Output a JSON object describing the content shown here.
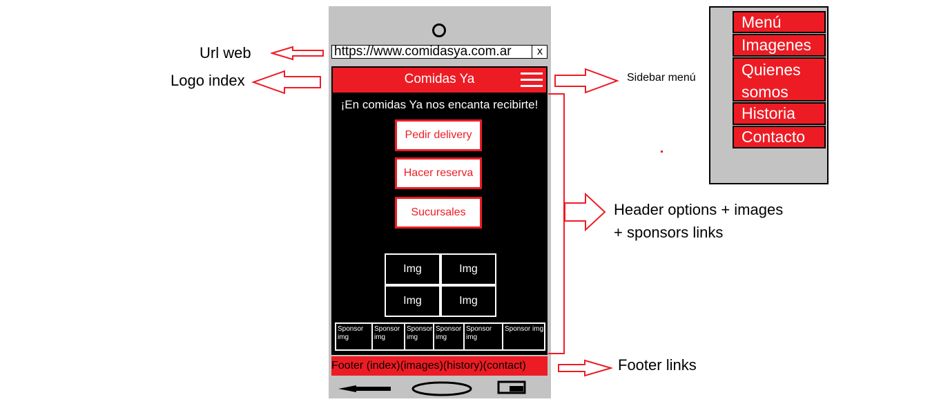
{
  "annotations": {
    "url_web": "Url web",
    "logo_index": "Logo index",
    "sidebar_menu": "Sidebar menú",
    "header_options_line1": "Header options + images",
    "header_options_line2": "+ sponsors links",
    "footer_links": "Footer links"
  },
  "phone": {
    "url": "https://www.comidasya.com.ar",
    "url_close": "x",
    "header_title": "Comidas Ya",
    "welcome": "¡En comidas Ya nos encanta recibirte!",
    "buttons": [
      "Pedir delivery",
      "Hacer reserva",
      "Sucursales"
    ],
    "images": [
      "Img",
      "Img",
      "Img",
      "Img"
    ],
    "sponsors": [
      "Sponsor img",
      "Sponsor img",
      "Sponsor img",
      "Sponsor img",
      "Sponsor img",
      "Sponsor img"
    ],
    "footer": "Footer (index)(images)(history)(contact)"
  },
  "sidebar": {
    "items": [
      "Menú",
      "Imagenes",
      "Quienes somos",
      "Historia",
      "Contacto"
    ]
  },
  "colors": {
    "accent": "#ed1c24",
    "phone_body": "#c3c3c3",
    "screen": "#000000"
  },
  "icons": [
    "camera-icon",
    "hamburger-icon",
    "back-arrow-icon",
    "home-button-icon",
    "recent-apps-icon"
  ]
}
